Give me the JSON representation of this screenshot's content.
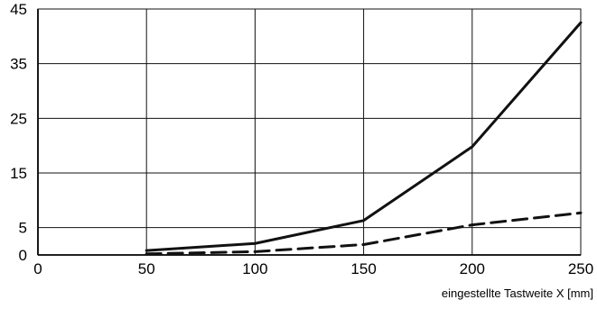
{
  "chart_data": {
    "type": "line",
    "title": "",
    "xlabel": "eingestellte Tastweite X [mm]",
    "ylabel": "",
    "xlim": [
      0,
      250
    ],
    "ylim": [
      0,
      45
    ],
    "grid": true,
    "legend": "none",
    "x_ticks": [
      0,
      50,
      100,
      150,
      200,
      250
    ],
    "y_ticks": [
      0,
      5,
      15,
      25,
      35,
      45
    ],
    "x_tick_labels": [
      "0",
      "50",
      "100",
      "150",
      "200",
      "250"
    ],
    "y_tick_labels": [
      "0",
      "5",
      "15",
      "25",
      "35",
      "45"
    ],
    "series": [
      {
        "style": "solid",
        "color": "#111111",
        "points": [
          [
            50,
            0.8
          ],
          [
            100,
            2.1
          ],
          [
            150,
            6.3
          ],
          [
            200,
            19.8
          ],
          [
            250,
            42.5
          ]
        ]
      },
      {
        "style": "dashed",
        "color": "#111111",
        "points": [
          [
            50,
            0.2
          ],
          [
            100,
            0.6
          ],
          [
            150,
            1.9
          ],
          [
            200,
            5.5
          ],
          [
            250,
            7.7
          ]
        ]
      }
    ]
  }
}
